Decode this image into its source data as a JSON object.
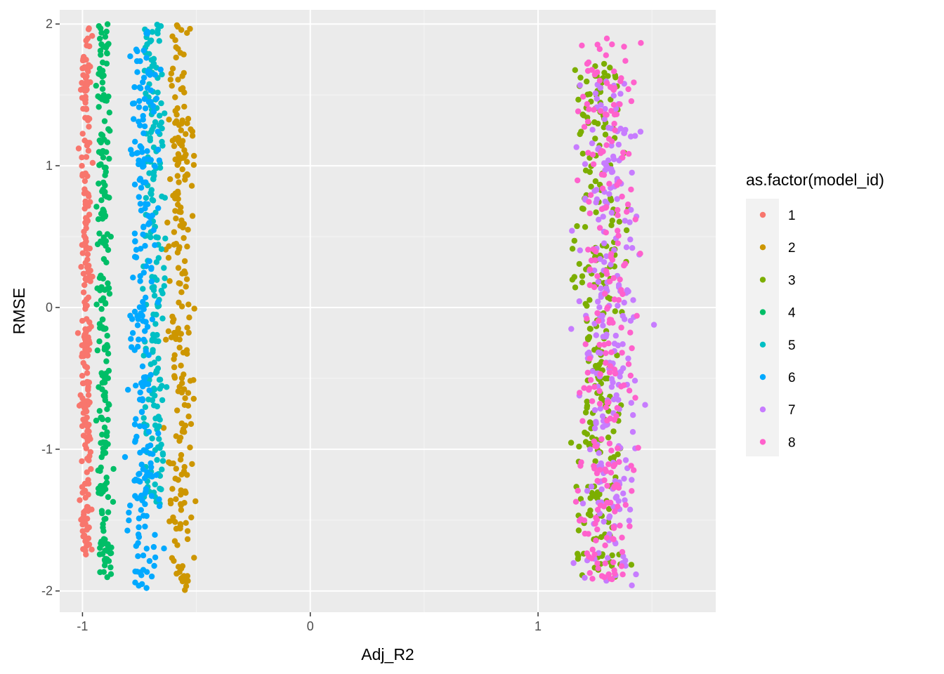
{
  "chart_data": {
    "type": "scatter",
    "title": "",
    "xlabel": "Adj_R2",
    "ylabel": "RMSE",
    "xlim": [
      -1.1,
      1.78
    ],
    "ylim": [
      -2.15,
      2.1
    ],
    "x_ticks": [
      -1,
      0,
      1
    ],
    "x_tick_labels": [
      "-1",
      "0",
      "1"
    ],
    "y_ticks": [
      -2,
      -1,
      0,
      1,
      2
    ],
    "y_tick_labels": [
      "-2",
      "-1",
      "0",
      "1",
      "2"
    ],
    "grid": true,
    "legend": {
      "title": "as.factor(model_id)",
      "position": "right"
    },
    "series": [
      {
        "name": "1",
        "color": "#F8766D",
        "x_center": -0.985,
        "x_spread": 0.012,
        "y_range": [
          -1.75,
          1.98
        ],
        "count": 240
      },
      {
        "name": "2",
        "color": "#CD9600",
        "x_center": -0.57,
        "x_spread": 0.028,
        "y_range": [
          -2.0,
          2.0
        ],
        "count": 230
      },
      {
        "name": "3",
        "color": "#7CAE00",
        "x_center": 1.26,
        "x_spread": 0.055,
        "y_range": [
          -1.95,
          1.72
        ],
        "count": 260
      },
      {
        "name": "4",
        "color": "#00BE67",
        "x_center": -0.905,
        "x_spread": 0.014,
        "y_range": [
          -1.92,
          2.0
        ],
        "count": 220
      },
      {
        "name": "5",
        "color": "#00BFC4",
        "x_center": -0.685,
        "x_spread": 0.025,
        "y_range": [
          -1.4,
          2.0
        ],
        "count": 200
      },
      {
        "name": "6",
        "color": "#00A9FF",
        "x_center": -0.73,
        "x_spread": 0.03,
        "y_range": [
          -1.98,
          1.98
        ],
        "count": 230
      },
      {
        "name": "7",
        "color": "#C77CFF",
        "x_center": 1.31,
        "x_spread": 0.065,
        "y_range": [
          -1.97,
          1.63
        ],
        "count": 250
      },
      {
        "name": "8",
        "color": "#FF61CC",
        "x_center": 1.3,
        "x_spread": 0.065,
        "y_range": [
          -1.97,
          1.94
        ],
        "count": 240
      }
    ]
  }
}
